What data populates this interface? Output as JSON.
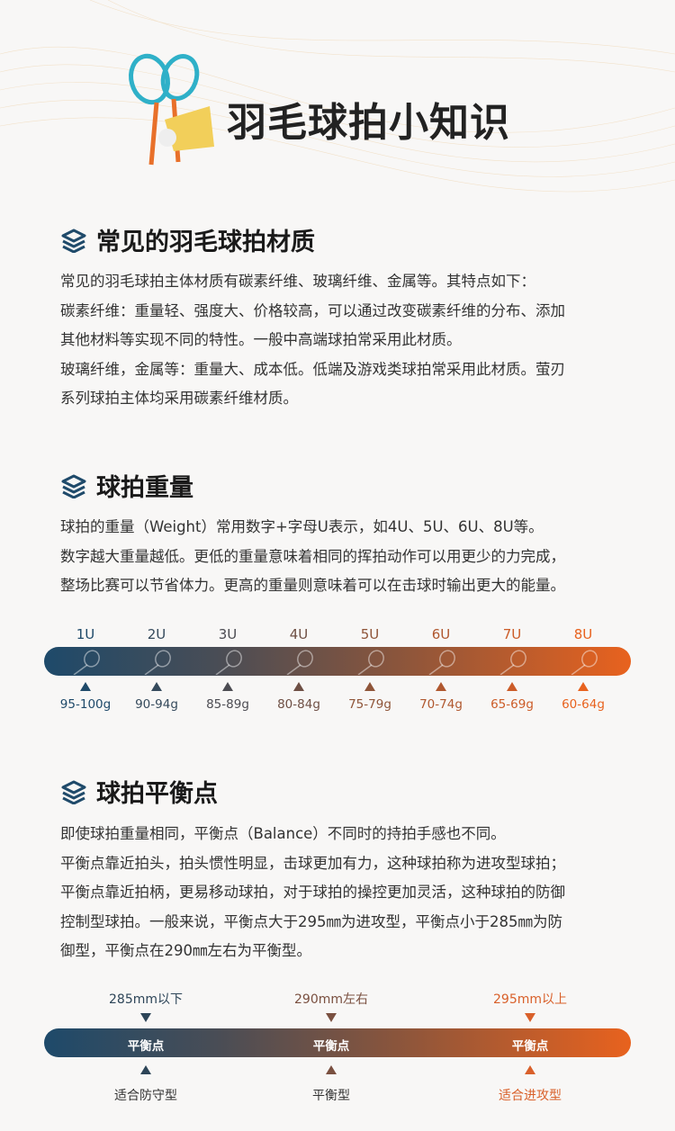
{
  "header": {
    "title": "羽毛球拍小知识"
  },
  "sections": [
    {
      "heading": "常见的羽毛球拍材质",
      "lines": [
        "常见的羽毛球拍主体材质有碳素纤维、玻璃纤维、金属等。其特点如下：",
        "碳素纤维：重量轻、强度大、价格较高，可以通过改变碳素纤维的分布、添加",
        "其他材料等实现不同的特性。一般中高端球拍常采用此材质。",
        "玻璃纤维，金属等：重量大、成本低。低端及游戏类球拍常采用此材质。萤刃",
        "系列球拍主体均采用碳素纤维材质。"
      ]
    },
    {
      "heading": "球拍重量",
      "lines": [
        "球拍的重量（Weight）常用数字+字母U表示，如4U、5U、6U、8U等。",
        "数字越大重量越低。更低的重量意味着相同的挥拍动作可以用更少的力完成，",
        "整场比赛可以节省体力。更高的重量则意味着可以在击球时输出更大的能量。"
      ]
    },
    {
      "heading": "球拍平衡点",
      "lines": [
        "即使球拍重量相同，平衡点（Balance）不同时的持拍手感也不同。",
        "平衡点靠近拍头，拍头惯性明显，击球更加有力，这种球拍称为进攻型球拍；",
        "平衡点靠近拍柄，更易移动球拍，对于球拍的操控更加灵活，这种球拍的防御",
        "控制型球拍。一般来说，平衡点大于295㎜为进攻型，平衡点小于285㎜为防",
        "御型，平衡点在290㎜左右为平衡型。"
      ]
    }
  ],
  "weights": [
    {
      "u": "1U",
      "g": "95-100g",
      "color": "#1f4a6a"
    },
    {
      "u": "2U",
      "g": "90-94g",
      "color": "#354a5c"
    },
    {
      "u": "3U",
      "g": "85-89g",
      "color": "#4c4c52"
    },
    {
      "u": "4U",
      "g": "80-84g",
      "color": "#6e4f44"
    },
    {
      "u": "5U",
      "g": "75-79g",
      "color": "#8f5539"
    },
    {
      "u": "6U",
      "g": "70-74g",
      "color": "#b0582f"
    },
    {
      "u": "7U",
      "g": "65-69g",
      "color": "#cc5c28"
    },
    {
      "u": "8U",
      "g": "60-64g",
      "color": "#e8621e"
    }
  ],
  "balance": [
    {
      "range": "285mm以下",
      "label": "平衡点",
      "type": "适合防守型",
      "color": "#2d4558",
      "text_color": "#333333"
    },
    {
      "range": "290mm左右",
      "label": "平衡点",
      "type": "平衡型",
      "color": "#7a5040",
      "text_color": "#333333"
    },
    {
      "range": "295mm以上",
      "label": "平衡点",
      "type": "适合进攻型",
      "color": "#d9602a",
      "text_color": "#d9602a"
    }
  ],
  "icons": {
    "section": "layers-icon",
    "logo": "badminton-racket-shuttlecock-icon"
  }
}
